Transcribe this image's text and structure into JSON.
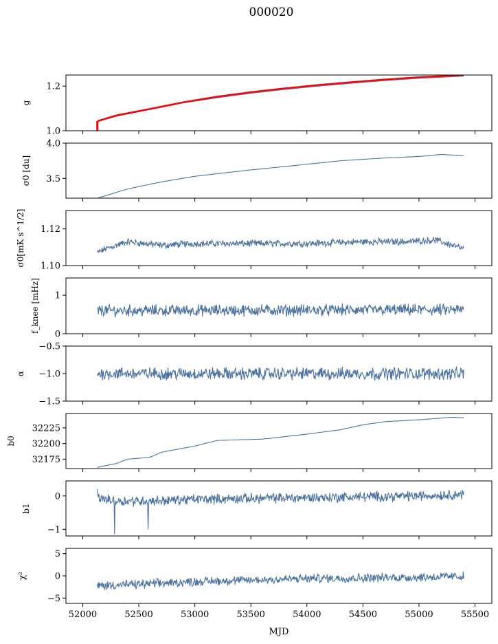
{
  "title": "000020",
  "colors": {
    "series": "#4c72a0",
    "overlay": "#ff0000",
    "axis": "#000000"
  },
  "chart_data": [
    {
      "type": "line",
      "ylabel": "g",
      "xlim": [
        51850,
        55650
      ],
      "ylim": [
        1.0,
        1.25
      ],
      "yticks": [
        "1.0",
        "1.2"
      ],
      "ytick_values": [
        1.0,
        1.2
      ],
      "x": [
        52130,
        52300,
        52600,
        52900,
        53200,
        53500,
        53800,
        54100,
        54400,
        54700,
        55000,
        55400
      ],
      "series": [
        {
          "values": [
            1.04,
            1.065,
            1.095,
            1.125,
            1.148,
            1.168,
            1.185,
            1.2,
            1.213,
            1.225,
            1.235,
            1.245
          ],
          "color": "#4c72a0"
        },
        {
          "values": [
            1.043,
            1.069,
            1.098,
            1.128,
            1.153,
            1.173,
            1.19,
            1.205,
            1.218,
            1.23,
            1.24,
            1.25
          ],
          "color": "#ff0000"
        }
      ]
    },
    {
      "type": "line",
      "ylabel": "σ0 [du]",
      "xlim": [
        51850,
        55650
      ],
      "ylim": [
        3.22,
        4.0
      ],
      "yticks": [
        "3.5",
        "4.0"
      ],
      "ytick_values": [
        3.5,
        4.0
      ],
      "x": [
        52130,
        52400,
        52700,
        53000,
        53500,
        54000,
        54300,
        54700,
        55000,
        55200,
        55400
      ],
      "values": [
        3.22,
        3.35,
        3.45,
        3.53,
        3.62,
        3.7,
        3.75,
        3.79,
        3.81,
        3.84,
        3.82
      ]
    },
    {
      "type": "line",
      "ylabel": "σ0[mK s^1/2]",
      "xlim": [
        51850,
        55650
      ],
      "ylim": [
        1.1,
        1.13
      ],
      "yticks": [
        "1.10",
        "1.12"
      ],
      "ytick_values": [
        1.1,
        1.12
      ],
      "x": [
        52130,
        52200,
        52400,
        52700,
        53000,
        53500,
        54000,
        54500,
        54900,
        55150,
        55300,
        55400
      ],
      "values": [
        1.107,
        1.109,
        1.113,
        1.111,
        1.112,
        1.112,
        1.112,
        1.113,
        1.113,
        1.114,
        1.111,
        1.109
      ],
      "noise": 0.0015
    },
    {
      "type": "line",
      "ylabel": "f_knee [mHz]",
      "xlim": [
        51850,
        55650
      ],
      "ylim": [
        0,
        1.45
      ],
      "yticks": [
        "0",
        "1"
      ],
      "ytick_values": [
        0,
        1
      ],
      "x": [
        52130,
        55400
      ],
      "values": [
        0.6,
        0.62
      ],
      "noise": 0.12
    },
    {
      "type": "line",
      "ylabel": "α",
      "xlim": [
        51850,
        55650
      ],
      "ylim": [
        -1.5,
        -0.5
      ],
      "yticks": [
        "−1.5",
        "−1.0",
        "−0.5"
      ],
      "ytick_values": [
        -1.5,
        -1.0,
        -0.5
      ],
      "x": [
        52130,
        55400
      ],
      "values": [
        -1.0,
        -1.0
      ],
      "noise": 0.09
    },
    {
      "type": "line",
      "ylabel": "b0",
      "xlim": [
        51850,
        55650
      ],
      "ylim": [
        32160,
        32248
      ],
      "yticks": [
        "32175",
        "32200",
        "32225"
      ],
      "ytick_values": [
        32175,
        32200,
        32225
      ],
      "x": [
        52130,
        52300,
        52400,
        52600,
        52700,
        53000,
        53200,
        53600,
        54000,
        54300,
        54500,
        54700,
        55000,
        55300,
        55400
      ],
      "values": [
        32162,
        32168,
        32175,
        32178,
        32186,
        32196,
        32205,
        32207,
        32215,
        32222,
        32230,
        32235,
        32238,
        32242,
        32241
      ]
    },
    {
      "type": "line",
      "ylabel": "b1",
      "xlim": [
        51850,
        55650
      ],
      "ylim": [
        -1.2,
        0.45
      ],
      "yticks": [
        "−1",
        "0"
      ],
      "ytick_values": [
        -1,
        0
      ],
      "x": [
        52130,
        52280,
        52600,
        53000,
        54000,
        55000,
        55400
      ],
      "values": [
        -0.05,
        -0.15,
        -0.15,
        -0.1,
        -0.05,
        0.0,
        0.05
      ],
      "noise": 0.12,
      "spikes": [
        [
          52130,
          0.2
        ],
        [
          52285,
          -1.15
        ],
        [
          52585,
          -1.0
        ]
      ]
    },
    {
      "type": "line",
      "ylabel": "χ²",
      "xlim": [
        51850,
        55650
      ],
      "ylim": [
        -6.2,
        6.2
      ],
      "yticks": [
        "−5",
        "0",
        "5"
      ],
      "ytick_values": [
        -5,
        0,
        5
      ],
      "x": [
        52130,
        52600,
        53000,
        54000,
        55000,
        55400
      ],
      "values": [
        -2.2,
        -1.8,
        -1.3,
        -0.6,
        -0.3,
        -0.1
      ],
      "noise": 0.8
    }
  ],
  "xaxis": {
    "label": "MJD",
    "ticks": [
      "52000",
      "52500",
      "53000",
      "53500",
      "54000",
      "54500",
      "55000",
      "55500"
    ],
    "tick_values": [
      52000,
      52500,
      53000,
      53500,
      54000,
      54500,
      55000,
      55500
    ]
  }
}
